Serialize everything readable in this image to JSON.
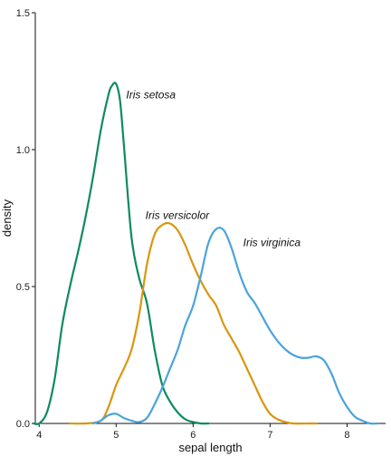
{
  "chart_data": {
    "type": "line",
    "xlabel": "sepal length",
    "ylabel": "density",
    "xlim": [
      3.95,
      8.5
    ],
    "ylim": [
      0,
      1.5
    ],
    "x_ticks": [
      {
        "value": 4,
        "label": "4"
      },
      {
        "value": 5,
        "label": "5"
      },
      {
        "value": 6,
        "label": "6"
      },
      {
        "value": 7,
        "label": "7"
      },
      {
        "value": 8,
        "label": "8"
      }
    ],
    "y_ticks": [
      {
        "value": 0,
        "label": "0.0"
      },
      {
        "value": 0.5,
        "label": "0.5"
      },
      {
        "value": 1.0,
        "label": "1.0"
      },
      {
        "value": 1.5,
        "label": "1.5"
      }
    ],
    "grid": false,
    "legend": "direct labels",
    "series": [
      {
        "name": "Iris setosa",
        "color": "#0f8a5f",
        "label_at": [
          5.13,
          1.2
        ],
        "x": [
          3.93,
          4.0,
          4.1,
          4.2,
          4.3,
          4.4,
          4.5,
          4.6,
          4.7,
          4.8,
          4.9,
          4.95,
          5.0,
          5.05,
          5.1,
          5.2,
          5.3,
          5.4,
          5.5,
          5.6,
          5.7,
          5.8,
          5.9,
          6.0,
          6.1,
          6.2
        ],
        "y": [
          0.0,
          0.0,
          0.04,
          0.16,
          0.36,
          0.5,
          0.62,
          0.75,
          0.9,
          1.07,
          1.2,
          1.235,
          1.24,
          1.18,
          1.02,
          0.68,
          0.53,
          0.44,
          0.27,
          0.14,
          0.08,
          0.04,
          0.015,
          0.005,
          0.0,
          0.0
        ]
      },
      {
        "name": "Iris versicolor",
        "color": "#d9960f",
        "label_at": [
          5.38,
          0.76
        ],
        "x": [
          4.4,
          4.6,
          4.8,
          4.9,
          5.0,
          5.1,
          5.2,
          5.3,
          5.4,
          5.5,
          5.6,
          5.7,
          5.8,
          5.9,
          6.0,
          6.1,
          6.2,
          6.3,
          6.4,
          6.5,
          6.6,
          6.7,
          6.8,
          6.9,
          7.0,
          7.1,
          7.2,
          7.3,
          7.5,
          7.6
        ],
        "y": [
          0.0,
          0.0,
          0.01,
          0.06,
          0.14,
          0.2,
          0.27,
          0.4,
          0.58,
          0.69,
          0.725,
          0.73,
          0.705,
          0.65,
          0.58,
          0.52,
          0.47,
          0.43,
          0.36,
          0.31,
          0.26,
          0.2,
          0.14,
          0.08,
          0.035,
          0.015,
          0.005,
          0.0,
          0.0,
          0.0
        ]
      },
      {
        "name": "Iris virginica",
        "color": "#4aa3dd",
        "label_at": [
          6.65,
          0.66
        ],
        "x": [
          4.7,
          4.8,
          4.9,
          5.0,
          5.1,
          5.2,
          5.3,
          5.4,
          5.5,
          5.6,
          5.7,
          5.8,
          5.9,
          6.0,
          6.1,
          6.2,
          6.3,
          6.4,
          6.5,
          6.6,
          6.7,
          6.8,
          6.9,
          7.0,
          7.1,
          7.2,
          7.3,
          7.4,
          7.5,
          7.6,
          7.7,
          7.8,
          7.9,
          8.0,
          8.1,
          8.2,
          8.3,
          8.4
        ],
        "y": [
          0.0,
          0.01,
          0.03,
          0.035,
          0.02,
          0.01,
          0.005,
          0.02,
          0.07,
          0.13,
          0.2,
          0.27,
          0.36,
          0.43,
          0.54,
          0.66,
          0.71,
          0.705,
          0.64,
          0.55,
          0.48,
          0.44,
          0.39,
          0.34,
          0.3,
          0.27,
          0.25,
          0.24,
          0.24,
          0.245,
          0.23,
          0.18,
          0.11,
          0.06,
          0.025,
          0.01,
          0.0,
          0.0
        ]
      }
    ]
  }
}
